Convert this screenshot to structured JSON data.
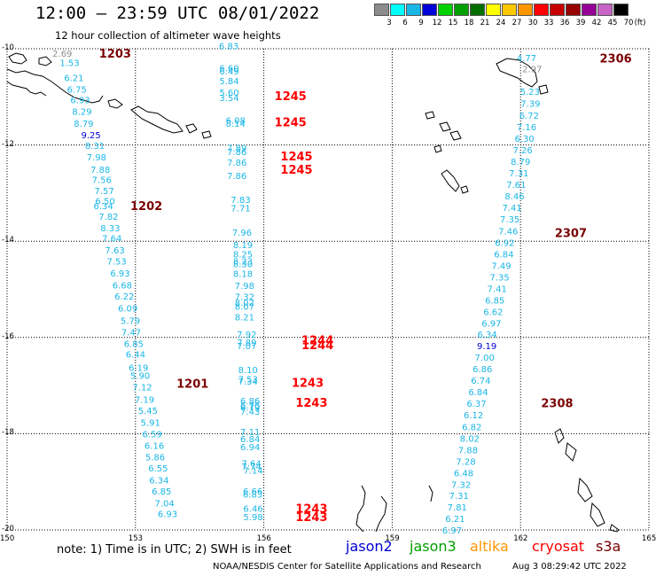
{
  "title": "12:00 – 23:59 UTC 08/01/2022",
  "subtitle": "12 hour collection of altimeter wave heights",
  "colors": {
    "cyan": "#1ab6e6",
    "blue": "#0000d8",
    "gray": "#8c8c8c",
    "darkred": "#7a0000",
    "red": "#ff0000",
    "gridline": "#000000",
    "coast": "#000000"
  },
  "scale": {
    "unit": "(ft)",
    "labels": [
      "3",
      "6",
      "9",
      "12",
      "15",
      "18",
      "21",
      "24",
      "27",
      "30",
      "33",
      "36",
      "39",
      "42",
      "45",
      "70"
    ],
    "colors": [
      "#8c8c8c",
      "#00ffff",
      "#1ab6e6",
      "#0000d8",
      "#00d200",
      "#00a000",
      "#006e00",
      "#ffff00",
      "#ffc800",
      "#ff9600",
      "#ff0000",
      "#c80000",
      "#960000",
      "#960096",
      "#c864c8",
      "#000000"
    ]
  },
  "axes": {
    "lat_labels": [
      {
        "text": "-10",
        "lat": -10
      },
      {
        "text": "-12",
        "lat": -12
      },
      {
        "text": "-14",
        "lat": -14
      },
      {
        "text": "-16",
        "lat": -16
      },
      {
        "text": "-18",
        "lat": -18
      },
      {
        "text": "-20",
        "lat": -20
      }
    ],
    "lon_labels": [
      {
        "text": "150",
        "lon": 150
      },
      {
        "text": "153",
        "lon": 153
      },
      {
        "text": "156",
        "lon": 156
      },
      {
        "text": "159",
        "lon": 159
      },
      {
        "text": "162",
        "lon": 162
      },
      {
        "text": "165",
        "lon": 165
      }
    ]
  },
  "map_data": {
    "lon_range": [
      150,
      165
    ],
    "lat_range": [
      -20,
      -10
    ],
    "track_values": [
      {
        "v": "2.69",
        "lon": 151.06,
        "lat": -10.09,
        "c": "gray"
      },
      {
        "v": "1.53",
        "lon": 151.23,
        "lat": -10.29,
        "c": "cyan"
      },
      {
        "v": "6.21",
        "lon": 151.33,
        "lat": -10.6,
        "c": "cyan"
      },
      {
        "v": "6.75",
        "lon": 151.4,
        "lat": -10.84,
        "c": "cyan"
      },
      {
        "v": "6.93",
        "lon": 151.48,
        "lat": -11.06,
        "c": "cyan"
      },
      {
        "v": "8.29",
        "lon": 151.52,
        "lat": -11.3,
        "c": "cyan"
      },
      {
        "v": "8.79",
        "lon": 151.56,
        "lat": -11.55,
        "c": "cyan"
      },
      {
        "v": "9.25",
        "lon": 151.73,
        "lat": -11.79,
        "c": "blue"
      },
      {
        "v": "8.31",
        "lon": 151.82,
        "lat": -12.01,
        "c": "cyan"
      },
      {
        "v": "7.98",
        "lon": 151.86,
        "lat": -12.25,
        "c": "cyan"
      },
      {
        "v": "7.88",
        "lon": 151.95,
        "lat": -12.5,
        "c": "cyan"
      },
      {
        "v": "7.56",
        "lon": 151.98,
        "lat": -12.72,
        "c": "cyan"
      },
      {
        "v": "7.57",
        "lon": 152.04,
        "lat": -12.95,
        "c": "cyan"
      },
      {
        "v": "6.50",
        "lon": 152.06,
        "lat": -13.16,
        "c": "cyan"
      },
      {
        "v": "6.34",
        "lon": 152.02,
        "lat": -13.26,
        "c": "cyan"
      },
      {
        "v": "7.82",
        "lon": 152.14,
        "lat": -13.48,
        "c": "cyan"
      },
      {
        "v": "8.33",
        "lon": 152.18,
        "lat": -13.72,
        "c": "cyan"
      },
      {
        "v": "7.64",
        "lon": 152.22,
        "lat": -13.93,
        "c": "cyan"
      },
      {
        "v": "7.63",
        "lon": 152.29,
        "lat": -14.18,
        "c": "cyan"
      },
      {
        "v": "7.53",
        "lon": 152.33,
        "lat": -14.41,
        "c": "cyan"
      },
      {
        "v": "6.93",
        "lon": 152.41,
        "lat": -14.66,
        "c": "cyan"
      },
      {
        "v": "6.68",
        "lon": 152.46,
        "lat": -14.91,
        "c": "cyan"
      },
      {
        "v": "6.22",
        "lon": 152.51,
        "lat": -15.14,
        "c": "cyan"
      },
      {
        "v": "6.09",
        "lon": 152.59,
        "lat": -15.39,
        "c": "cyan"
      },
      {
        "v": "5.79",
        "lon": 152.65,
        "lat": -15.64,
        "c": "cyan"
      },
      {
        "v": "7.47",
        "lon": 152.67,
        "lat": -15.88,
        "c": "cyan"
      },
      {
        "v": "6.85",
        "lon": 152.73,
        "lat": -16.12,
        "c": "cyan"
      },
      {
        "v": "6.44",
        "lon": 152.77,
        "lat": -16.34,
        "c": "cyan"
      },
      {
        "v": "6.19",
        "lon": 152.84,
        "lat": -16.62,
        "c": "cyan"
      },
      {
        "v": "5.90",
        "lon": 152.88,
        "lat": -16.79,
        "c": "cyan"
      },
      {
        "v": "7.12",
        "lon": 152.93,
        "lat": -17.03,
        "c": "cyan"
      },
      {
        "v": "7.19",
        "lon": 152.98,
        "lat": -17.28,
        "c": "cyan"
      },
      {
        "v": "5.45",
        "lon": 153.06,
        "lat": -17.51,
        "c": "cyan"
      },
      {
        "v": "5.91",
        "lon": 153.12,
        "lat": -17.76,
        "c": "cyan"
      },
      {
        "v": "6.59",
        "lon": 153.16,
        "lat": -18.0,
        "c": "cyan"
      },
      {
        "v": "6.16",
        "lon": 153.21,
        "lat": -18.24,
        "c": "cyan"
      },
      {
        "v": "5.86",
        "lon": 153.23,
        "lat": -18.48,
        "c": "cyan"
      },
      {
        "v": "6.55",
        "lon": 153.3,
        "lat": -18.71,
        "c": "cyan"
      },
      {
        "v": "6.34",
        "lon": 153.32,
        "lat": -18.96,
        "c": "cyan"
      },
      {
        "v": "6.85",
        "lon": 153.38,
        "lat": -19.19,
        "c": "cyan"
      },
      {
        "v": "7.04",
        "lon": 153.45,
        "lat": -19.44,
        "c": "cyan"
      },
      {
        "v": "6.93",
        "lon": 153.52,
        "lat": -19.66,
        "c": "cyan"
      },
      {
        "v": "6.83",
        "lon": 154.95,
        "lat": -9.94,
        "c": "cyan"
      },
      {
        "v": "6.60",
        "lon": 154.96,
        "lat": -10.4,
        "c": "cyan"
      },
      {
        "v": "6.49",
        "lon": 154.96,
        "lat": -10.46,
        "c": "cyan"
      },
      {
        "v": "5.84",
        "lon": 154.96,
        "lat": -10.66,
        "c": "cyan"
      },
      {
        "v": "5.60",
        "lon": 154.96,
        "lat": -10.9,
        "c": "cyan"
      },
      {
        "v": "3.54",
        "lon": 154.96,
        "lat": -11.01,
        "c": "cyan"
      },
      {
        "v": "6.08",
        "lon": 155.11,
        "lat": -11.48,
        "c": "cyan"
      },
      {
        "v": "8.14",
        "lon": 155.11,
        "lat": -11.55,
        "c": "cyan"
      },
      {
        "v": "7.89",
        "lon": 155.14,
        "lat": -12.05,
        "c": "cyan"
      },
      {
        "v": "7.86",
        "lon": 155.14,
        "lat": -12.14,
        "c": "cyan"
      },
      {
        "v": "7.86",
        "lon": 155.14,
        "lat": -12.36,
        "c": "cyan"
      },
      {
        "v": "7.86",
        "lon": 155.14,
        "lat": -12.63,
        "c": "cyan"
      },
      {
        "v": "7.83",
        "lon": 155.23,
        "lat": -13.13,
        "c": "cyan"
      },
      {
        "v": "7.71",
        "lon": 155.23,
        "lat": -13.31,
        "c": "cyan"
      },
      {
        "v": "7.96",
        "lon": 155.26,
        "lat": -13.81,
        "c": "cyan"
      },
      {
        "v": "8.19",
        "lon": 155.28,
        "lat": -14.07,
        "c": "cyan"
      },
      {
        "v": "8.25",
        "lon": 155.28,
        "lat": -14.26,
        "c": "cyan"
      },
      {
        "v": "8.23",
        "lon": 155.28,
        "lat": -14.41,
        "c": "cyan"
      },
      {
        "v": "8.30",
        "lon": 155.28,
        "lat": -14.47,
        "c": "cyan"
      },
      {
        "v": "8.18",
        "lon": 155.28,
        "lat": -14.67,
        "c": "cyan"
      },
      {
        "v": "7.98",
        "lon": 155.32,
        "lat": -14.92,
        "c": "cyan"
      },
      {
        "v": "7.32",
        "lon": 155.32,
        "lat": -15.15,
        "c": "cyan"
      },
      {
        "v": "8.02",
        "lon": 155.32,
        "lat": -15.27,
        "c": "cyan"
      },
      {
        "v": "8.07",
        "lon": 155.32,
        "lat": -15.35,
        "c": "cyan"
      },
      {
        "v": "8.21",
        "lon": 155.32,
        "lat": -15.57,
        "c": "cyan"
      },
      {
        "v": "7.92",
        "lon": 155.37,
        "lat": -15.93,
        "c": "cyan"
      },
      {
        "v": "7.89",
        "lon": 155.37,
        "lat": -16.1,
        "c": "cyan"
      },
      {
        "v": "7.07",
        "lon": 155.37,
        "lat": -16.17,
        "c": "cyan"
      },
      {
        "v": "8.10",
        "lon": 155.4,
        "lat": -16.67,
        "c": "cyan"
      },
      {
        "v": "7.53",
        "lon": 155.4,
        "lat": -16.86,
        "c": "cyan"
      },
      {
        "v": "7.34",
        "lon": 155.4,
        "lat": -16.91,
        "c": "cyan"
      },
      {
        "v": "6.86",
        "lon": 155.45,
        "lat": -17.31,
        "c": "cyan"
      },
      {
        "v": "6.76",
        "lon": 155.45,
        "lat": -17.4,
        "c": "cyan"
      },
      {
        "v": "6.79",
        "lon": 155.45,
        "lat": -17.45,
        "c": "cyan"
      },
      {
        "v": "7.43",
        "lon": 155.45,
        "lat": -17.53,
        "c": "cyan"
      },
      {
        "v": "7.11",
        "lon": 155.45,
        "lat": -17.96,
        "c": "cyan"
      },
      {
        "v": "6.84",
        "lon": 155.45,
        "lat": -18.1,
        "c": "cyan"
      },
      {
        "v": "6.94",
        "lon": 155.45,
        "lat": -18.27,
        "c": "cyan"
      },
      {
        "v": "7.64",
        "lon": 155.48,
        "lat": -18.61,
        "c": "cyan"
      },
      {
        "v": "7.74",
        "lon": 155.48,
        "lat": -18.67,
        "c": "cyan"
      },
      {
        "v": "7.14",
        "lon": 155.52,
        "lat": -18.76,
        "c": "cyan"
      },
      {
        "v": "6.66",
        "lon": 155.51,
        "lat": -19.19,
        "c": "cyan"
      },
      {
        "v": "6.83",
        "lon": 155.51,
        "lat": -19.25,
        "c": "cyan"
      },
      {
        "v": "6.46",
        "lon": 155.52,
        "lat": -19.55,
        "c": "cyan"
      },
      {
        "v": "5.98",
        "lon": 155.52,
        "lat": -19.72,
        "c": "cyan"
      },
      {
        "v": "4.77",
        "lon": 161.91,
        "lat": -10.18,
        "c": "cyan"
      },
      {
        "v": "2.97",
        "lon": 162.04,
        "lat": -10.41,
        "c": "gray"
      },
      {
        "v": "5.23",
        "lon": 161.99,
        "lat": -10.88,
        "c": "cyan"
      },
      {
        "v": "7.39",
        "lon": 162.0,
        "lat": -11.13,
        "c": "cyan"
      },
      {
        "v": "6.72",
        "lon": 161.97,
        "lat": -11.38,
        "c": "cyan"
      },
      {
        "v": "7.16",
        "lon": 161.91,
        "lat": -11.62,
        "c": "cyan"
      },
      {
        "v": "6.30",
        "lon": 161.86,
        "lat": -11.86,
        "c": "cyan"
      },
      {
        "v": "7.26",
        "lon": 161.82,
        "lat": -12.1,
        "c": "cyan"
      },
      {
        "v": "8.79",
        "lon": 161.77,
        "lat": -12.34,
        "c": "cyan"
      },
      {
        "v": "7.31",
        "lon": 161.73,
        "lat": -12.58,
        "c": "cyan"
      },
      {
        "v": "7.61",
        "lon": 161.67,
        "lat": -12.82,
        "c": "cyan"
      },
      {
        "v": "8.46",
        "lon": 161.63,
        "lat": -13.06,
        "c": "cyan"
      },
      {
        "v": "7.41",
        "lon": 161.57,
        "lat": -13.3,
        "c": "cyan"
      },
      {
        "v": "7.35",
        "lon": 161.52,
        "lat": -13.54,
        "c": "cyan"
      },
      {
        "v": "7.46",
        "lon": 161.48,
        "lat": -13.78,
        "c": "cyan"
      },
      {
        "v": "6.92",
        "lon": 161.4,
        "lat": -14.02,
        "c": "cyan"
      },
      {
        "v": "6.84",
        "lon": 161.38,
        "lat": -14.26,
        "c": "cyan"
      },
      {
        "v": "7.49",
        "lon": 161.32,
        "lat": -14.5,
        "c": "cyan"
      },
      {
        "v": "7.35",
        "lon": 161.28,
        "lat": -14.74,
        "c": "cyan"
      },
      {
        "v": "7.41",
        "lon": 161.22,
        "lat": -14.98,
        "c": "cyan"
      },
      {
        "v": "6.85",
        "lon": 161.17,
        "lat": -15.22,
        "c": "cyan"
      },
      {
        "v": "6.62",
        "lon": 161.13,
        "lat": -15.46,
        "c": "cyan"
      },
      {
        "v": "6.97",
        "lon": 161.09,
        "lat": -15.7,
        "c": "cyan"
      },
      {
        "v": "6.34",
        "lon": 160.99,
        "lat": -15.93,
        "c": "cyan"
      },
      {
        "v": "9.19",
        "lon": 160.98,
        "lat": -16.17,
        "c": "blue"
      },
      {
        "v": "7.00",
        "lon": 160.93,
        "lat": -16.41,
        "c": "cyan"
      },
      {
        "v": "6.86",
        "lon": 160.88,
        "lat": -16.65,
        "c": "cyan"
      },
      {
        "v": "6.74",
        "lon": 160.84,
        "lat": -16.89,
        "c": "cyan"
      },
      {
        "v": "6.84",
        "lon": 160.78,
        "lat": -17.13,
        "c": "cyan"
      },
      {
        "v": "6.37",
        "lon": 160.74,
        "lat": -17.37,
        "c": "cyan"
      },
      {
        "v": "6.12",
        "lon": 160.67,
        "lat": -17.61,
        "c": "cyan"
      },
      {
        "v": "6.82",
        "lon": 160.63,
        "lat": -17.85,
        "c": "cyan"
      },
      {
        "v": "8.02",
        "lon": 160.58,
        "lat": -18.09,
        "c": "cyan"
      },
      {
        "v": "7.88",
        "lon": 160.54,
        "lat": -18.33,
        "c": "cyan"
      },
      {
        "v": "7.28",
        "lon": 160.49,
        "lat": -18.57,
        "c": "cyan"
      },
      {
        "v": "6.48",
        "lon": 160.44,
        "lat": -18.81,
        "c": "cyan"
      },
      {
        "v": "7.32",
        "lon": 160.38,
        "lat": -19.05,
        "c": "cyan"
      },
      {
        "v": "7.31",
        "lon": 160.33,
        "lat": -19.28,
        "c": "cyan"
      },
      {
        "v": "7.81",
        "lon": 160.29,
        "lat": -19.52,
        "c": "cyan"
      },
      {
        "v": "6.21",
        "lon": 160.24,
        "lat": -19.76,
        "c": "cyan"
      },
      {
        "v": "6.97",
        "lon": 160.17,
        "lat": -20.0,
        "c": "cyan"
      }
    ],
    "pass_labels": [
      {
        "text": "1203",
        "lon": 152.15,
        "lat": -10.09,
        "c": "darkred"
      },
      {
        "text": "1245",
        "lon": 156.25,
        "lat": -10.98,
        "c": "red"
      },
      {
        "text": "1245",
        "lon": 156.25,
        "lat": -11.52,
        "c": "red"
      },
      {
        "text": "1245",
        "lon": 156.39,
        "lat": -12.23,
        "c": "red"
      },
      {
        "text": "1245",
        "lon": 156.39,
        "lat": -12.5,
        "c": "red"
      },
      {
        "text": "1202",
        "lon": 152.88,
        "lat": -13.26,
        "c": "darkred"
      },
      {
        "text": "1244",
        "lon": 156.88,
        "lat": -16.05,
        "c": "red"
      },
      {
        "text": "1244",
        "lon": 156.88,
        "lat": -16.15,
        "c": "red"
      },
      {
        "text": "1201",
        "lon": 153.96,
        "lat": -16.95,
        "c": "darkred"
      },
      {
        "text": "1243",
        "lon": 156.65,
        "lat": -16.93,
        "c": "red"
      },
      {
        "text": "1243",
        "lon": 156.74,
        "lat": -17.35,
        "c": "red"
      },
      {
        "text": "1243",
        "lon": 156.74,
        "lat": -19.55,
        "c": "red"
      },
      {
        "text": "1243",
        "lon": 156.74,
        "lat": -19.72,
        "c": "red"
      },
      {
        "text": "2306",
        "lon": 163.85,
        "lat": -10.19,
        "c": "darkred"
      },
      {
        "text": "2307",
        "lon": 162.8,
        "lat": -13.82,
        "c": "darkred"
      },
      {
        "text": "2308",
        "lon": 162.48,
        "lat": -17.36,
        "c": "darkred"
      }
    ]
  },
  "note": "note:  1) Time is in UTC;  2) SWH is in feet",
  "satellites": [
    {
      "name": "jason2",
      "color": "#0000d8"
    },
    {
      "name": "jason3",
      "color": "#00a000"
    },
    {
      "name": "altika",
      "color": "#ff9600"
    },
    {
      "name": "cryosat",
      "color": "#ff0000"
    },
    {
      "name": "s3a",
      "color": "#7a0000"
    }
  ],
  "footer": "NOAA/NESDIS Center for Satellite Applications and Research",
  "footer_date": "Aug  3 08:29:42 UTC 2022"
}
